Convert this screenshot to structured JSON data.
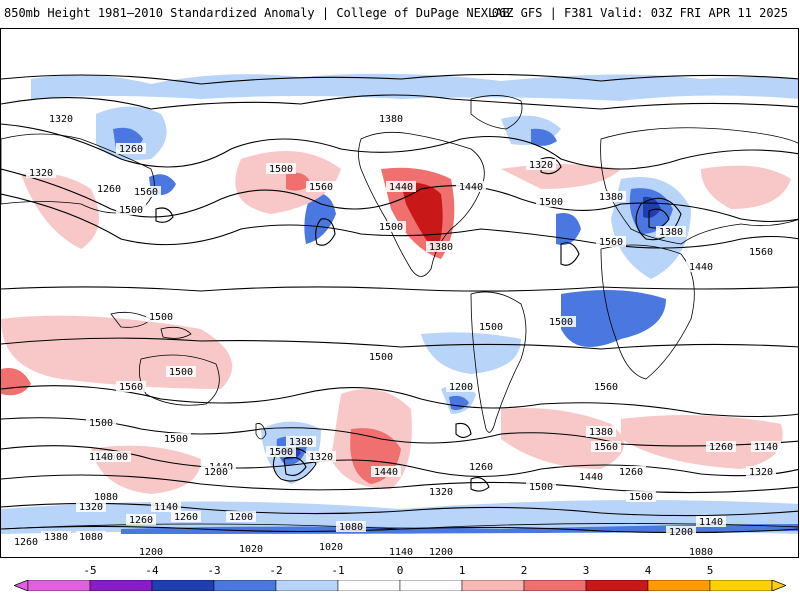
{
  "header": {
    "title_left": "850mb Height 1981–2010 Standardized Anomaly | College of DuPage NEXLAB",
    "title_right": "06Z GFS | F381 Valid: 03Z FRI APR 11 2025"
  },
  "colorbar": {
    "labels": [
      "-5",
      "-4",
      "-3",
      "-2",
      "-1",
      "0",
      "1",
      "2",
      "3",
      "4",
      "5"
    ],
    "colors": [
      "#e060e0",
      "#8a1cc8",
      "#1f3fb0",
      "#4a78e0",
      "#b8d4f8",
      "#ffffff",
      "#ffffff",
      "#f8b8b8",
      "#f07070",
      "#c81818",
      "#ff9a00",
      "#ffd000"
    ]
  },
  "contours": {
    "labels": [
      "1320",
      "1260",
      "1380",
      "1500",
      "1440",
      "1320",
      "1380",
      "1320",
      "1260",
      "1560",
      "1500",
      "1560",
      "1500",
      "1440",
      "1500",
      "1560",
      "1380",
      "1440",
      "1560",
      "1500",
      "1500",
      "1380",
      "1500",
      "1500",
      "1560",
      "1560",
      "1500",
      "1500",
      "1500",
      "1500",
      "1440",
      "1500",
      "1380",
      "1320",
      "1440",
      "1200",
      "1260",
      "1440",
      "1380",
      "1260",
      "1320",
      "1560",
      "1500",
      "1140",
      "1500",
      "1320",
      "1080",
      "1140",
      "1200",
      "1260",
      "1260",
      "1140",
      "1200",
      "1080",
      "1020",
      "1020",
      "1200",
      "1080",
      "1140",
      "1200",
      "1080",
      "1200",
      "1140",
      "1260",
      "1320",
      "1380",
      "1260"
    ]
  },
  "palette": {
    "land_outline": "#000000",
    "contour": "#000000",
    "neg_light": "#b8d4f8",
    "neg_mid": "#4a78e0",
    "neg_dark": "#1f3fb0",
    "pos_light": "#f8c8c8",
    "pos_mid": "#f07070",
    "pos_dark": "#c81818"
  }
}
